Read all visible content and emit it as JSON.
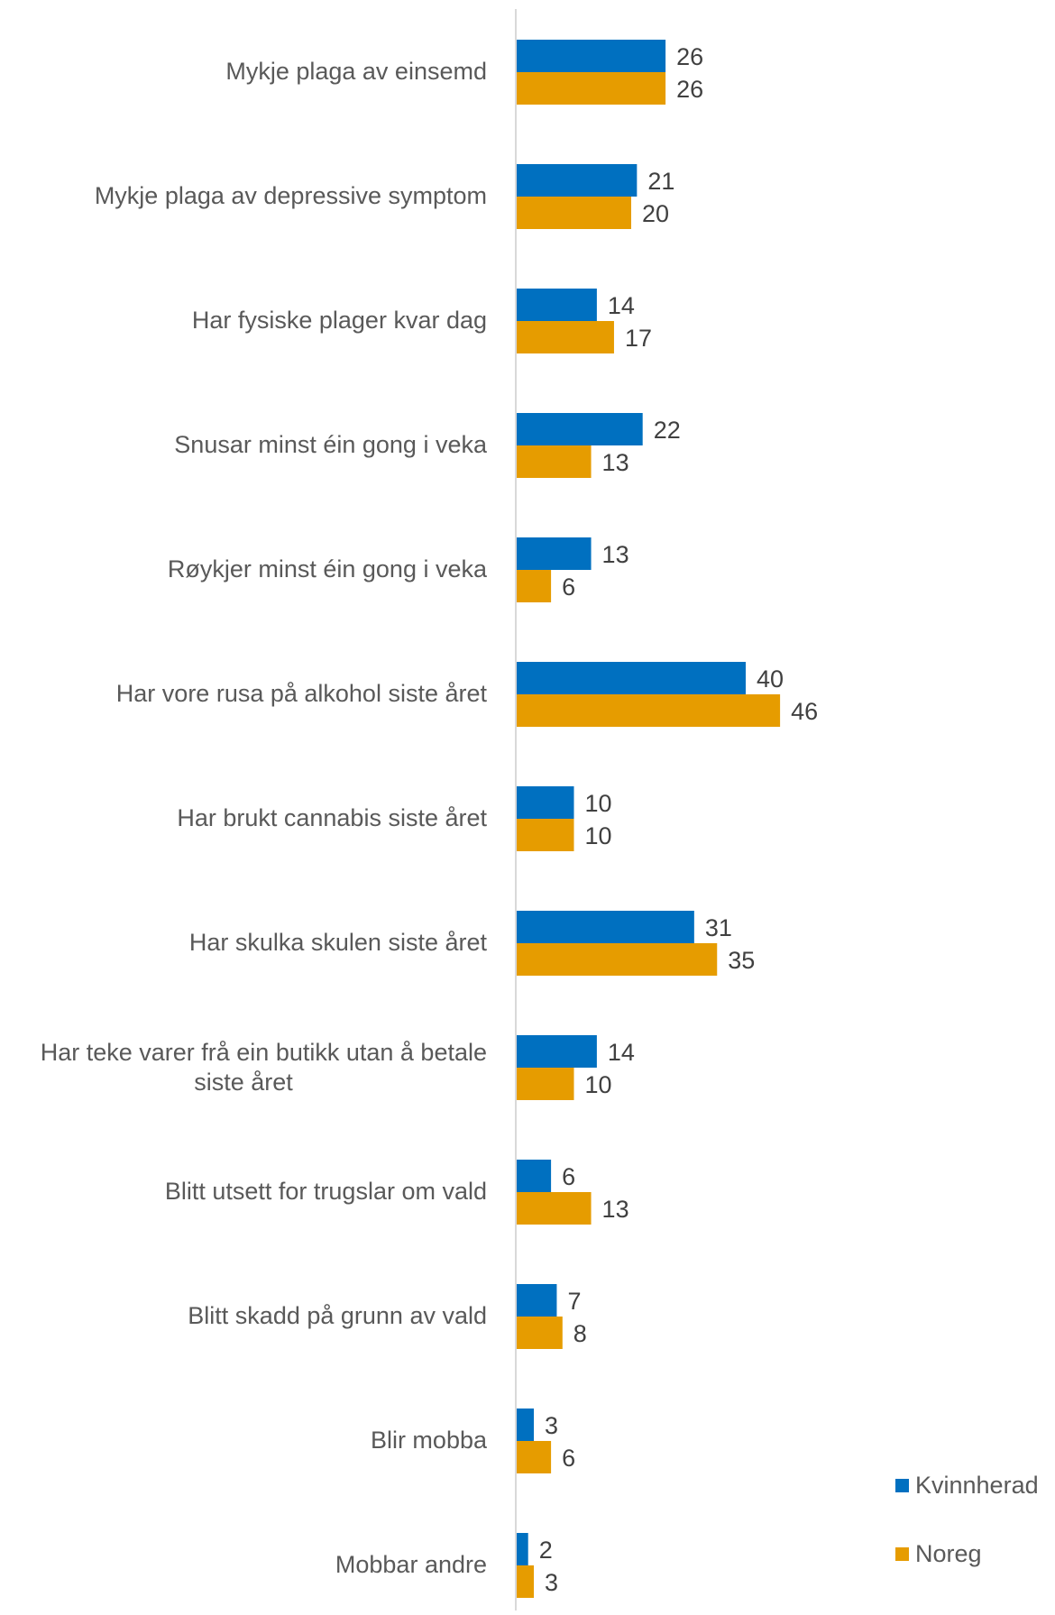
{
  "chart_data": {
    "type": "bar",
    "orientation": "horizontal",
    "categories": [
      "Mykje plaga av einsemd",
      "Mykje plaga av depressive symptom",
      "Har fysiske plager kvar dag",
      "Snusar minst éin gong i veka",
      "Røykjer minst éin gong i veka",
      "Har vore rusa på alkohol siste året",
      "Har brukt cannabis siste året",
      "Har skulka skulen siste året",
      "Har teke varer frå ein butikk utan å betale siste året",
      "Blitt utsett for trugslar om vald",
      "Blitt skadd på grunn av vald",
      "Blir mobba",
      "Mobbar andre"
    ],
    "series": [
      {
        "name": "Kvinnherad",
        "color": "#0070C0",
        "values": [
          26,
          21,
          14,
          22,
          13,
          40,
          10,
          31,
          14,
          6,
          7,
          3,
          2
        ]
      },
      {
        "name": "Noreg",
        "color": "#E69C00",
        "values": [
          26,
          20,
          17,
          13,
          6,
          46,
          10,
          35,
          10,
          13,
          8,
          6,
          3
        ]
      }
    ],
    "data_labels": true,
    "legend_position": "bottom-right",
    "grid": false,
    "xlim": [
      0,
      60
    ]
  }
}
